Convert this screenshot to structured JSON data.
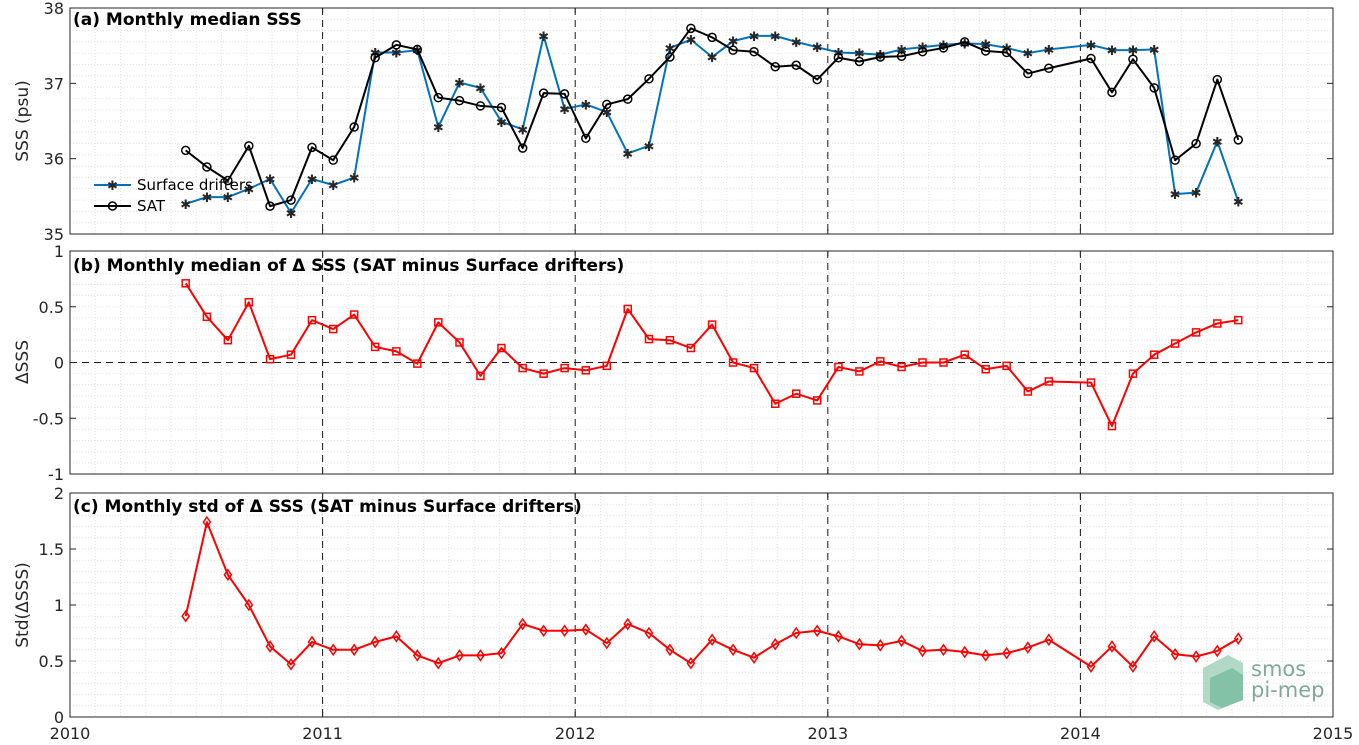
{
  "chart_data": [
    {
      "type": "line",
      "title": "(a) Monthly median SSS",
      "xlabel": "",
      "ylabel": "SSS (psu)",
      "xlim": [
        2010,
        2015
      ],
      "ylim": [
        35,
        38
      ],
      "yticks": [
        35,
        36,
        37,
        38
      ],
      "ytick_labels": [
        "35",
        "36",
        "37",
        "38"
      ],
      "grid": true,
      "legend": "left",
      "series": [
        {
          "name": "Surface drifters",
          "color": "#0072bd",
          "marker": "asterisk",
          "x": [
            2010.458,
            2010.542,
            2010.625,
            2010.708,
            2010.792,
            2010.875,
            2010.958,
            2011.042,
            2011.125,
            2011.208,
            2011.292,
            2011.375,
            2011.458,
            2011.542,
            2011.625,
            2011.708,
            2011.792,
            2011.875,
            2011.958,
            2012.042,
            2012.125,
            2012.208,
            2012.292,
            2012.375,
            2012.458,
            2012.542,
            2012.625,
            2012.708,
            2012.792,
            2012.875,
            2012.958,
            2013.042,
            2013.125,
            2013.208,
            2013.292,
            2013.375,
            2013.458,
            2013.542,
            2013.625,
            2013.708,
            2013.792,
            2013.875,
            2014.042,
            2014.125,
            2014.208,
            2014.292,
            2014.375,
            2014.458,
            2014.542,
            2014.625
          ],
          "values": [
            35.4,
            35.49,
            35.49,
            35.6,
            35.73,
            35.28,
            35.73,
            35.65,
            35.75,
            37.41,
            37.41,
            37.44,
            36.42,
            37.01,
            36.94,
            36.49,
            36.39,
            37.63,
            36.66,
            36.72,
            36.62,
            36.07,
            36.17,
            37.47,
            37.58,
            37.35,
            37.56,
            37.63,
            37.63,
            37.55,
            37.48,
            37.41,
            37.4,
            37.38,
            37.45,
            37.48,
            37.51,
            37.53,
            37.52,
            37.47,
            37.4,
            37.45,
            37.51,
            37.44,
            37.44,
            37.45,
            35.53,
            35.55,
            36.23,
            35.43
          ]
        },
        {
          "name": "SAT",
          "color": "#000000",
          "marker": "circle",
          "x": [
            2010.458,
            2010.542,
            2010.625,
            2010.708,
            2010.792,
            2010.875,
            2010.958,
            2011.042,
            2011.125,
            2011.208,
            2011.292,
            2011.375,
            2011.458,
            2011.542,
            2011.625,
            2011.708,
            2011.792,
            2011.875,
            2011.958,
            2012.042,
            2012.125,
            2012.208,
            2012.292,
            2012.375,
            2012.458,
            2012.542,
            2012.625,
            2012.708,
            2012.792,
            2012.875,
            2012.958,
            2013.042,
            2013.125,
            2013.208,
            2013.292,
            2013.375,
            2013.458,
            2013.542,
            2013.625,
            2013.708,
            2013.792,
            2013.875,
            2014.042,
            2014.125,
            2014.208,
            2014.292,
            2014.375,
            2014.458,
            2014.542,
            2014.625
          ],
          "values": [
            36.11,
            35.89,
            35.71,
            36.17,
            35.37,
            35.45,
            36.15,
            35.98,
            36.42,
            37.34,
            37.51,
            37.45,
            36.81,
            36.77,
            36.7,
            36.68,
            36.14,
            36.87,
            36.86,
            36.27,
            36.72,
            36.79,
            37.06,
            37.35,
            37.73,
            37.61,
            37.44,
            37.42,
            37.22,
            37.24,
            37.05,
            37.34,
            37.29,
            37.35,
            37.36,
            37.42,
            37.47,
            37.55,
            37.43,
            37.41,
            37.13,
            37.2,
            37.33,
            36.88,
            37.32,
            36.94,
            35.98,
            36.2,
            37.05,
            36.25
          ]
        }
      ]
    },
    {
      "type": "line",
      "title": "(b) Monthly median of Δ SSS (SAT minus Surface drifters)",
      "xlabel": "",
      "ylabel": "ΔSSS",
      "xlim": [
        2010,
        2015
      ],
      "ylim": [
        -1,
        1
      ],
      "yticks": [
        -1,
        -0.5,
        0,
        0.5,
        1
      ],
      "ytick_labels": [
        "-1",
        "-0.5",
        "0",
        "0.5",
        "1"
      ],
      "grid": true,
      "series": [
        {
          "color": "#ff0000",
          "marker": "square",
          "x": [
            2010.458,
            2010.542,
            2010.625,
            2010.708,
            2010.792,
            2010.875,
            2010.958,
            2011.042,
            2011.125,
            2011.208,
            2011.292,
            2011.375,
            2011.458,
            2011.542,
            2011.625,
            2011.708,
            2011.792,
            2011.875,
            2011.958,
            2012.042,
            2012.125,
            2012.208,
            2012.292,
            2012.375,
            2012.458,
            2012.542,
            2012.625,
            2012.708,
            2012.792,
            2012.875,
            2012.958,
            2013.042,
            2013.125,
            2013.208,
            2013.292,
            2013.375,
            2013.458,
            2013.542,
            2013.625,
            2013.708,
            2013.792,
            2013.875,
            2014.042,
            2014.125,
            2014.208,
            2014.292,
            2014.375,
            2014.458,
            2014.542,
            2014.625
          ],
          "values": [
            0.71,
            0.41,
            0.2,
            0.54,
            0.03,
            0.07,
            0.38,
            0.3,
            0.43,
            0.14,
            0.1,
            -0.01,
            0.36,
            0.18,
            -0.12,
            0.13,
            -0.05,
            -0.1,
            -0.05,
            -0.07,
            -0.03,
            0.48,
            0.21,
            0.2,
            0.13,
            0.34,
            0.0,
            -0.05,
            -0.37,
            -0.28,
            -0.34,
            -0.04,
            -0.08,
            0.01,
            -0.04,
            0.0,
            0.0,
            0.07,
            -0.06,
            -0.03,
            -0.26,
            -0.17,
            -0.18,
            -0.57,
            -0.1,
            0.07,
            0.17,
            0.27,
            0.35,
            0.38
          ]
        }
      ]
    },
    {
      "type": "line",
      "title": "(c) Monthly std of Δ SSS (SAT minus Surface drifters)",
      "xlabel": "",
      "ylabel": "Std(ΔSSS)",
      "xlim": [
        2010,
        2015
      ],
      "ylim": [
        0,
        2
      ],
      "yticks": [
        0,
        0.5,
        1,
        1.5,
        2
      ],
      "ytick_labels": [
        "0",
        "0.5",
        "1",
        "1.5",
        "2"
      ],
      "xticks": [
        2010,
        2011,
        2012,
        2013,
        2014,
        2015
      ],
      "xtick_labels": [
        "2010",
        "2011",
        "2012",
        "2013",
        "2014",
        "2015"
      ],
      "grid": true,
      "series": [
        {
          "color": "#ff0000",
          "marker": "diamond",
          "x": [
            2010.458,
            2010.542,
            2010.625,
            2010.708,
            2010.792,
            2010.875,
            2010.958,
            2011.042,
            2011.125,
            2011.208,
            2011.292,
            2011.375,
            2011.458,
            2011.542,
            2011.625,
            2011.708,
            2011.792,
            2011.875,
            2011.958,
            2012.042,
            2012.125,
            2012.208,
            2012.292,
            2012.375,
            2012.458,
            2012.542,
            2012.625,
            2012.708,
            2012.792,
            2012.875,
            2012.958,
            2013.042,
            2013.125,
            2013.208,
            2013.292,
            2013.375,
            2013.458,
            2013.542,
            2013.625,
            2013.708,
            2013.792,
            2013.875,
            2014.042,
            2014.125,
            2014.208,
            2014.292,
            2014.375,
            2014.458,
            2014.542,
            2014.625
          ],
          "values": [
            0.9,
            1.74,
            1.27,
            1.0,
            0.63,
            0.47,
            0.67,
            0.6,
            0.6,
            0.67,
            0.72,
            0.55,
            0.48,
            0.55,
            0.55,
            0.57,
            0.83,
            0.77,
            0.77,
            0.78,
            0.66,
            0.83,
            0.75,
            0.6,
            0.48,
            0.69,
            0.6,
            0.53,
            0.65,
            0.75,
            0.77,
            0.72,
            0.65,
            0.64,
            0.68,
            0.59,
            0.6,
            0.58,
            0.55,
            0.57,
            0.62,
            0.69,
            0.45,
            0.63,
            0.45,
            0.72,
            0.56,
            0.54,
            0.59,
            0.7
          ]
        }
      ]
    }
  ],
  "logo": {
    "line1": "smos",
    "line2": "pi-mep",
    "color": "#7fa99b"
  }
}
